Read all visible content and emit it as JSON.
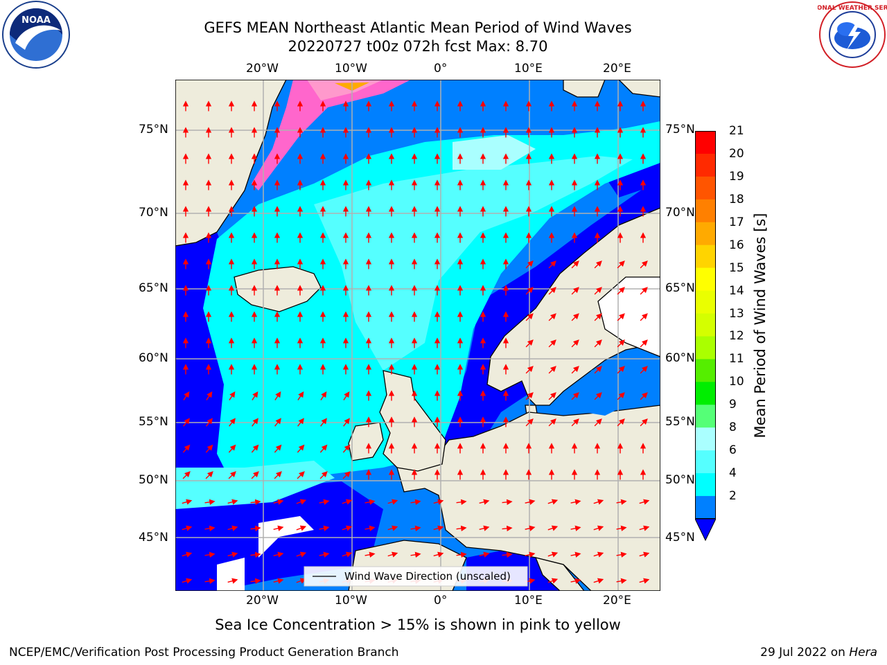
{
  "title_line1": "GEFS MEAN Northeast Atlantic Mean Period of Wind Waves",
  "title_line2": "20220727 t00z 072h fcst   Max: 8.70",
  "subtitle": "Sea Ice Concentration > 15% is shown in pink to yellow",
  "footer_left": "NCEP/EMC/Verification Post Processing Product Generation Branch",
  "footer_right_date": "29 Jul 2022 on ",
  "footer_right_machine": "Hera",
  "lon_ticks": [
    "20°W",
    "10°W",
    "0°",
    "10°E",
    "20°E"
  ],
  "lat_ticks": [
    "75°N",
    "70°N",
    "65°N",
    "60°N",
    "55°N",
    "50°N",
    "45°N"
  ],
  "legend_label": "Wind Wave Direction (unscaled)",
  "colorbar": {
    "label": "Mean Period of Wind Waves [s]",
    "ticks": [
      "21",
      "20",
      "19",
      "18",
      "17",
      "16",
      "15",
      "14",
      "13",
      "12",
      "11",
      "10",
      "9",
      "8",
      "6",
      "4",
      "2"
    ],
    "colors": [
      "#ff0000",
      "#ff2a00",
      "#ff5500",
      "#ff8000",
      "#ffaa00",
      "#ffd400",
      "#ffff00",
      "#eaff00",
      "#d4ff00",
      "#aaff00",
      "#55ee00",
      "#00ee00",
      "#55ff77",
      "#aaffff",
      "#55ffff",
      "#00ffff",
      "#0080ff"
    ],
    "extend_color": "#0000ff"
  },
  "logos": {
    "noaa_text": "NOAA",
    "nws_text": "NATIONAL WEATHER SERVICE"
  }
}
